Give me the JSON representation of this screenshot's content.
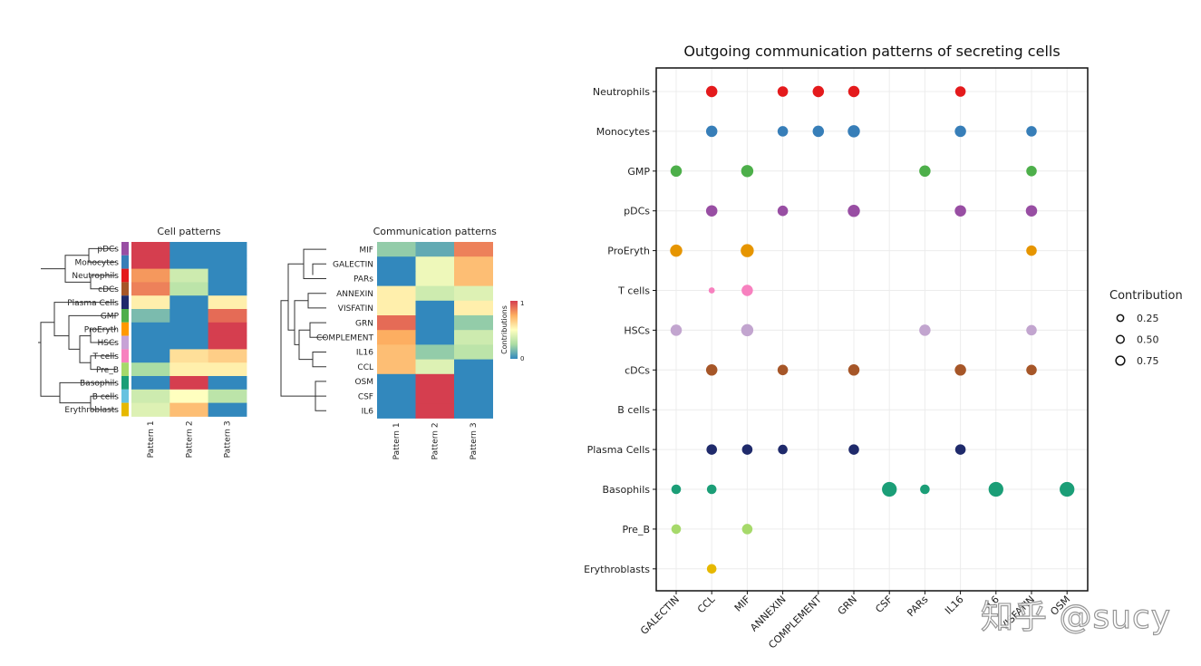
{
  "chart_data": [
    {
      "type": "heatmap",
      "title": "Cell patterns",
      "rows": [
        "pDCs",
        "Monocytes",
        "Neutrophils",
        "cDCs",
        "Plasma Cells",
        "GMP",
        "ProEryth",
        "HSCs",
        "T cells",
        "Pre_B",
        "Basophils",
        "B cells",
        "Erythroblasts"
      ],
      "columns": [
        "Pattern 1",
        "Pattern 2",
        "Pattern 3"
      ],
      "row_colors": [
        "#984ea3",
        "#377eb8",
        "#e41a1c",
        "#a65628",
        "#1f2a6b",
        "#4daf4a",
        "#ff9900",
        "#c7a3d6",
        "#f781bf",
        "#a6d96a",
        "#1b9e77",
        "#66c2e0",
        "#e6b800"
      ],
      "values": [
        [
          1.0,
          0.0,
          0.0
        ],
        [
          1.0,
          0.0,
          0.0
        ],
        [
          0.8,
          0.35,
          0.0
        ],
        [
          0.85,
          0.3,
          0.0
        ],
        [
          0.55,
          0.0,
          0.55
        ],
        [
          0.15,
          0.0,
          0.9
        ],
        [
          0.0,
          0.0,
          1.0
        ],
        [
          0.0,
          0.0,
          1.0
        ],
        [
          0.0,
          0.6,
          0.65
        ],
        [
          0.25,
          0.55,
          0.55
        ],
        [
          0.0,
          1.0,
          0.0
        ],
        [
          0.35,
          0.5,
          0.3
        ],
        [
          0.4,
          0.7,
          0.0
        ]
      ]
    },
    {
      "type": "heatmap",
      "title": "Communication patterns",
      "rows": [
        "MIF",
        "GALECTIN",
        "PARs",
        "ANNEXIN",
        "VISFATIN",
        "GRN",
        "COMPLEMENT",
        "IL16",
        "CCL",
        "OSM",
        "CSF",
        "IL6"
      ],
      "columns": [
        "Pattern 1",
        "Pattern 2",
        "Pattern 3"
      ],
      "values": [
        [
          0.2,
          0.1,
          0.85
        ],
        [
          0.0,
          0.45,
          0.7
        ],
        [
          0.0,
          0.45,
          0.7
        ],
        [
          0.55,
          0.35,
          0.4
        ],
        [
          0.55,
          0.0,
          0.55
        ],
        [
          0.9,
          0.0,
          0.2
        ],
        [
          0.75,
          0.0,
          0.35
        ],
        [
          0.7,
          0.2,
          0.3
        ],
        [
          0.7,
          0.4,
          0.0
        ],
        [
          0.0,
          1.0,
          0.0
        ],
        [
          0.0,
          1.0,
          0.0
        ],
        [
          0.0,
          1.0,
          0.0
        ]
      ],
      "colorbar": {
        "label": "Contributions",
        "min_label": "0",
        "max_label": "1"
      }
    },
    {
      "type": "scatter",
      "title": "Outgoing communication patterns of secreting cells",
      "x_categories": [
        "GALECTIN",
        "CCL",
        "MIF",
        "ANNEXIN",
        "COMPLEMENT",
        "GRN",
        "CSF",
        "PARs",
        "IL16",
        "IL6",
        "VISFATIN",
        "OSM"
      ],
      "y_categories": [
        "Neutrophils",
        "Monocytes",
        "GMP",
        "pDCs",
        "ProEryth",
        "T cells",
        "HSCs",
        "cDCs",
        "B cells",
        "Plasma Cells",
        "Basophils",
        "Pre_B",
        "Erythroblasts"
      ],
      "series": [
        {
          "name": "Neutrophils",
          "color": "#e41a1c",
          "points": [
            [
              "CCL",
              0.5
            ],
            [
              "ANNEXIN",
              0.45
            ],
            [
              "COMPLEMENT",
              0.5
            ],
            [
              "GRN",
              0.5
            ],
            [
              "IL16",
              0.45
            ]
          ]
        },
        {
          "name": "Monocytes",
          "color": "#377eb8",
          "points": [
            [
              "CCL",
              0.5
            ],
            [
              "ANNEXIN",
              0.45
            ],
            [
              "COMPLEMENT",
              0.5
            ],
            [
              "GRN",
              0.55
            ],
            [
              "IL16",
              0.5
            ],
            [
              "VISFATIN",
              0.45
            ]
          ]
        },
        {
          "name": "GMP",
          "color": "#4daf4a",
          "points": [
            [
              "GALECTIN",
              0.5
            ],
            [
              "MIF",
              0.55
            ],
            [
              "PARs",
              0.5
            ],
            [
              "VISFATIN",
              0.45
            ]
          ]
        },
        {
          "name": "pDCs",
          "color": "#984ea3",
          "points": [
            [
              "CCL",
              0.5
            ],
            [
              "ANNEXIN",
              0.45
            ],
            [
              "GRN",
              0.55
            ],
            [
              "IL16",
              0.5
            ],
            [
              "VISFATIN",
              0.5
            ]
          ]
        },
        {
          "name": "ProEryth",
          "color": "#e69500",
          "points": [
            [
              "GALECTIN",
              0.55
            ],
            [
              "MIF",
              0.6
            ],
            [
              "VISFATIN",
              0.45
            ]
          ]
        },
        {
          "name": "T cells",
          "color": "#f781bf",
          "points": [
            [
              "CCL",
              0.2
            ],
            [
              "MIF",
              0.5
            ]
          ]
        },
        {
          "name": "HSCs",
          "color": "#c2a5cf",
          "points": [
            [
              "GALECTIN",
              0.5
            ],
            [
              "MIF",
              0.55
            ],
            [
              "PARs",
              0.5
            ],
            [
              "VISFATIN",
              0.45
            ]
          ]
        },
        {
          "name": "cDCs",
          "color": "#a65628",
          "points": [
            [
              "CCL",
              0.5
            ],
            [
              "ANNEXIN",
              0.45
            ],
            [
              "GRN",
              0.5
            ],
            [
              "IL16",
              0.5
            ],
            [
              "VISFATIN",
              0.45
            ]
          ]
        },
        {
          "name": "B cells",
          "color": "#66c2e0",
          "points": []
        },
        {
          "name": "Plasma Cells",
          "color": "#1f2a6b",
          "points": [
            [
              "CCL",
              0.45
            ],
            [
              "MIF",
              0.45
            ],
            [
              "ANNEXIN",
              0.4
            ],
            [
              "GRN",
              0.45
            ],
            [
              "IL16",
              0.45
            ]
          ]
        },
        {
          "name": "Basophils",
          "color": "#1b9e77",
          "points": [
            [
              "GALECTIN",
              0.4
            ],
            [
              "CCL",
              0.4
            ],
            [
              "CSF",
              0.7
            ],
            [
              "PARs",
              0.4
            ],
            [
              "IL6",
              0.7
            ],
            [
              "OSM",
              0.7
            ]
          ]
        },
        {
          "name": "Pre_B",
          "color": "#a6d96a",
          "points": [
            [
              "GALECTIN",
              0.4
            ],
            [
              "MIF",
              0.45
            ]
          ]
        },
        {
          "name": "Erythroblasts",
          "color": "#e6b800",
          "points": [
            [
              "CCL",
              0.4
            ]
          ]
        }
      ],
      "legend": {
        "title": "Contribution",
        "entries": [
          0.25,
          0.5,
          0.75
        ],
        "labels": [
          "0.25",
          "0.50",
          "0.75"
        ],
        "position": "right"
      }
    }
  ],
  "watermark": "知乎 @sucy"
}
